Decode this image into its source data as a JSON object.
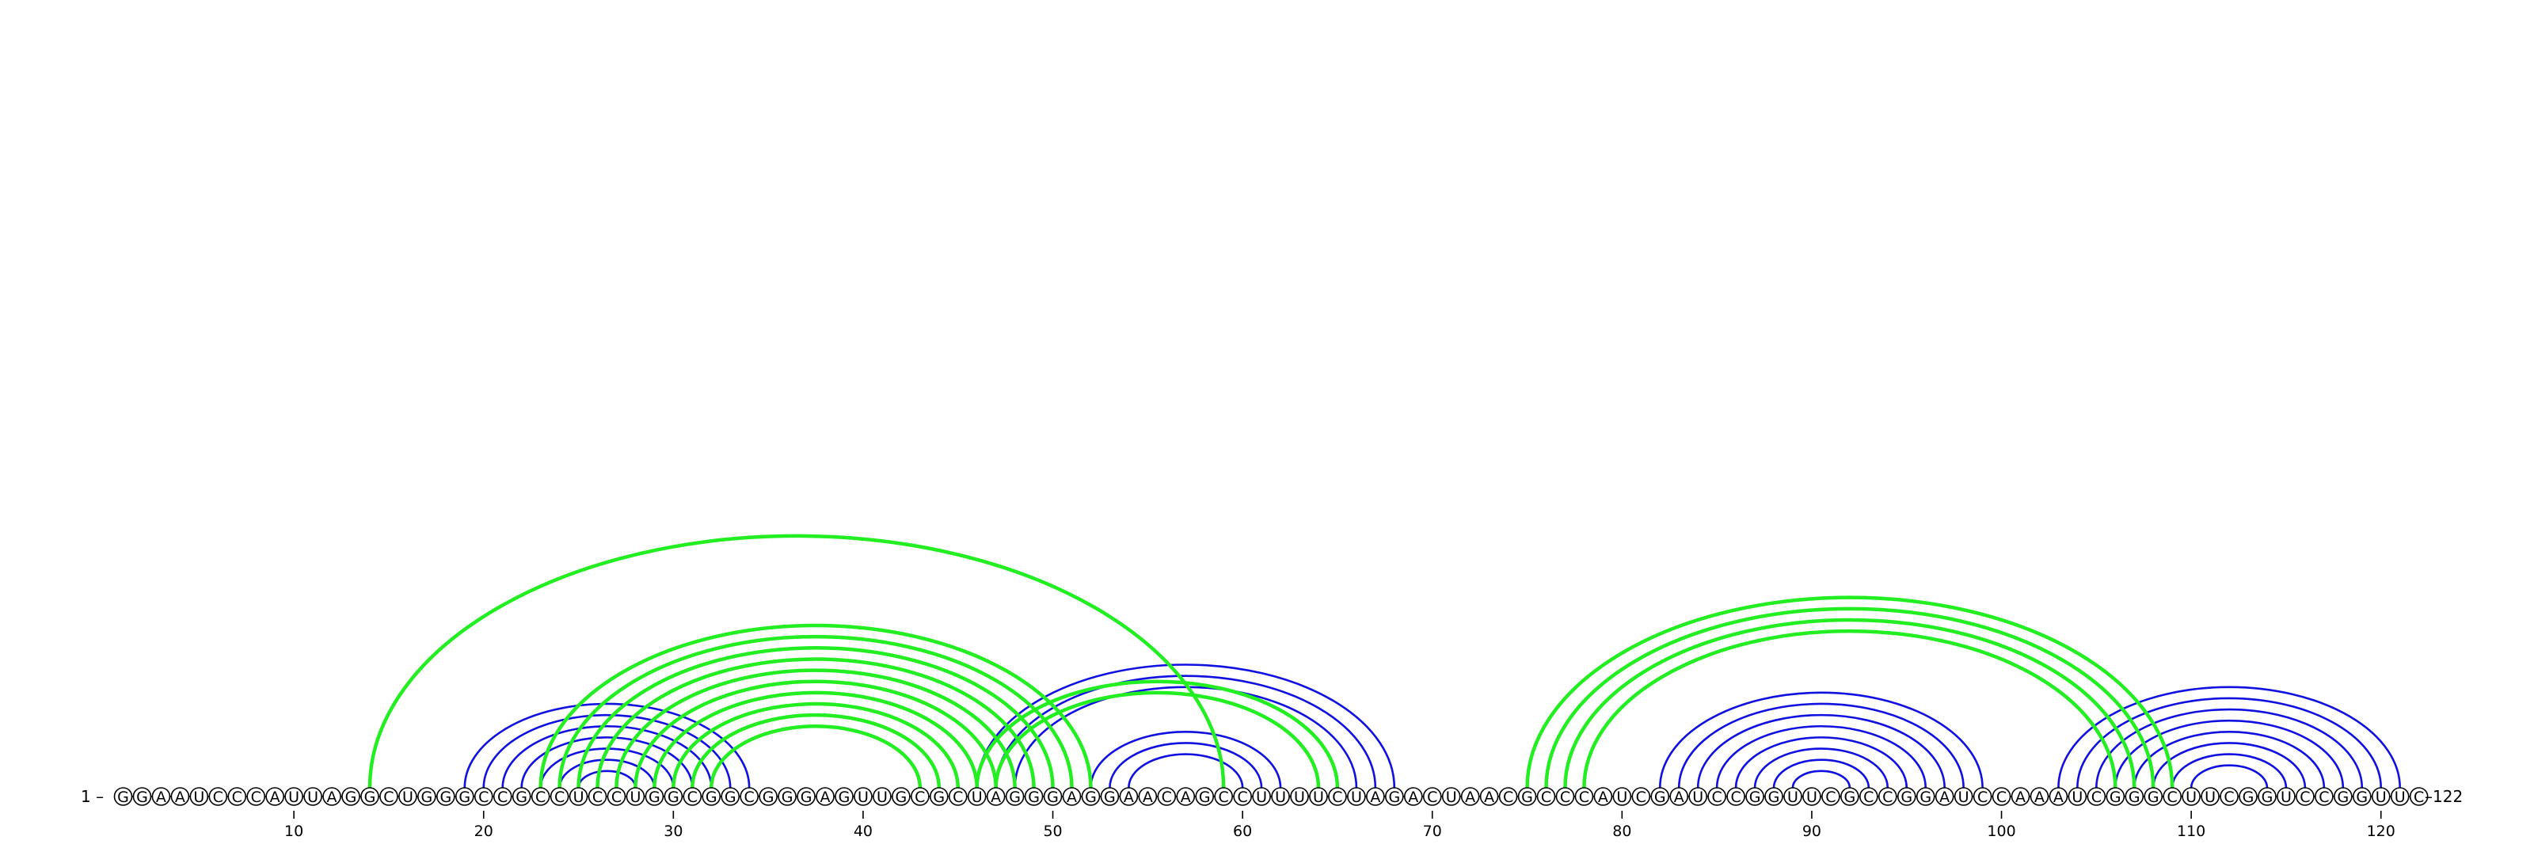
{
  "sequence": "GGAAUCCCAUUAGGCUGGGCCGCCUCCUGGCGGCGGGAGUUGCGCUAGGGAGGAACAGCCUUUUCUAGACUAACGCCCAUCGAUCCGGUUCGCCGGAUCCAAAUCGGGCUUCGGUCCGGUUC",
  "start_label": "1 –",
  "end_label": "–122",
  "position_ticks": [
    "10",
    "20",
    "30",
    "40",
    "50",
    "60",
    "70",
    "80",
    "90",
    "100",
    "110",
    "120"
  ],
  "colors": {
    "blue": "#1010e0",
    "green": "#22ee22",
    "nucleotide_outline": "#000000"
  },
  "arc_sets": [
    {
      "color": "blue",
      "pairs": [
        [
          19,
          34
        ],
        [
          20,
          33
        ],
        [
          21,
          32
        ],
        [
          22,
          31
        ],
        [
          23,
          30
        ],
        [
          24,
          29
        ],
        [
          25,
          28
        ],
        [
          46,
          68
        ],
        [
          47,
          67
        ],
        [
          48,
          66
        ],
        [
          52,
          62
        ],
        [
          53,
          61
        ],
        [
          54,
          60
        ],
        [
          82,
          99
        ],
        [
          83,
          98
        ],
        [
          84,
          97
        ],
        [
          85,
          96
        ],
        [
          86,
          95
        ],
        [
          87,
          94
        ],
        [
          88,
          93
        ],
        [
          89,
          92
        ],
        [
          103,
          121
        ],
        [
          104,
          120
        ],
        [
          105,
          119
        ],
        [
          106,
          118
        ],
        [
          107,
          117
        ],
        [
          108,
          116
        ],
        [
          109,
          115
        ],
        [
          110,
          114
        ]
      ]
    },
    {
      "color": "green",
      "pairs": [
        [
          14,
          59
        ],
        [
          23,
          52
        ],
        [
          24,
          51
        ],
        [
          25,
          50
        ],
        [
          26,
          49
        ],
        [
          27,
          48
        ],
        [
          28,
          47
        ],
        [
          29,
          46
        ],
        [
          30,
          45
        ],
        [
          31,
          44
        ],
        [
          32,
          43
        ],
        [
          46,
          65
        ],
        [
          47,
          64
        ],
        [
          75,
          109
        ],
        [
          76,
          108
        ],
        [
          77,
          107
        ],
        [
          78,
          106
        ]
      ]
    }
  ]
}
